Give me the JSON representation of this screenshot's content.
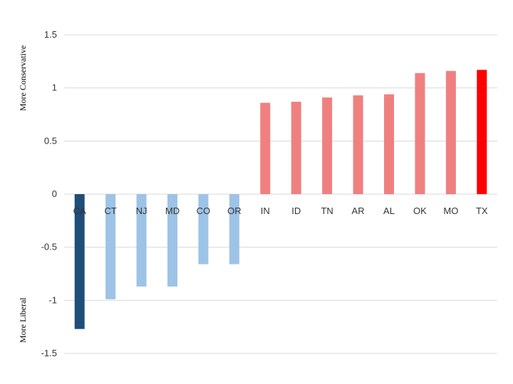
{
  "chart_data": {
    "type": "bar",
    "categories": [
      "CA",
      "CT",
      "NJ",
      "MD",
      "CO",
      "OR",
      "IN",
      "ID",
      "TN",
      "AR",
      "AL",
      "OK",
      "MO",
      "TX"
    ],
    "values": [
      -1.27,
      -0.99,
      -0.87,
      -0.87,
      -0.66,
      -0.66,
      0.86,
      0.87,
      0.91,
      0.93,
      0.94,
      1.14,
      1.16,
      1.17
    ],
    "bar_colors": [
      "#1f4e79",
      "#9dc3e6",
      "#9dc3e6",
      "#9dc3e6",
      "#9dc3e6",
      "#9dc3e6",
      "#f08080",
      "#f08080",
      "#f08080",
      "#f08080",
      "#f08080",
      "#f08080",
      "#f08080",
      "#ff0000"
    ],
    "ylim": [
      -1.5,
      1.5
    ],
    "yticks": [
      1.5,
      1,
      0.5,
      0,
      -0.5,
      -1,
      -1.5
    ],
    "grid": true,
    "upper_label": "More Conservative",
    "lower_label": "More Liberal"
  }
}
